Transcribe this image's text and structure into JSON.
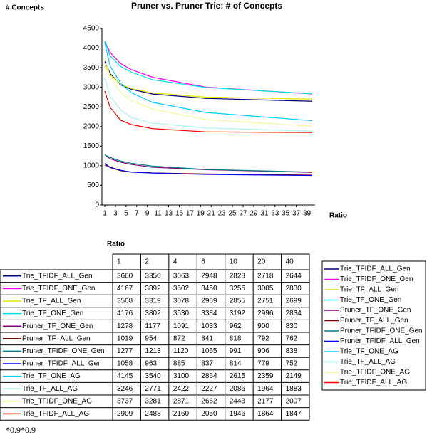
{
  "chart_data": {
    "type": "line",
    "title": "Pruner vs. Pruner Trie: # of Concepts",
    "y_label": "# Concepts",
    "x_label": "Ratio",
    "table_title": "Ratio",
    "x": [
      1,
      2,
      4,
      6,
      10,
      20,
      40
    ],
    "xlim": [
      1,
      40
    ],
    "xticks": [
      1,
      3,
      5,
      7,
      9,
      11,
      13,
      15,
      17,
      19,
      21,
      23,
      25,
      27,
      29,
      31,
      33,
      35,
      37,
      39
    ],
    "ylim": [
      0,
      4500
    ],
    "yticks": [
      0,
      500,
      1000,
      1500,
      2000,
      2500,
      3000,
      3500,
      4000,
      4500
    ],
    "series": [
      {
        "name": "Trie_TFIDF_ALL_Gen",
        "color": "#000080",
        "values": [
          3660,
          3350,
          3063,
          2948,
          2828,
          2718,
          2644
        ]
      },
      {
        "name": "Trie_TFIDF_ONE_Gen",
        "color": "#ff00ff",
        "values": [
          4167,
          3892,
          3602,
          3450,
          3255,
          3005,
          2830
        ]
      },
      {
        "name": "Trie_TF_ALL_Gen",
        "color": "#e6e600",
        "values": [
          3568,
          3319,
          3078,
          2969,
          2855,
          2751,
          2699
        ]
      },
      {
        "name": "Trie_TF_ONE_Gen",
        "color": "#00e0e0",
        "values": [
          4176,
          3802,
          3530,
          3384,
          3192,
          2996,
          2834
        ]
      },
      {
        "name": "Pruner_TF_ONE_Gen",
        "color": "#800080",
        "values": [
          1278,
          1177,
          1091,
          1033,
          962,
          900,
          830
        ]
      },
      {
        "name": "Pruner_TF_ALL_Gen",
        "color": "#800000",
        "values": [
          1019,
          954,
          872,
          841,
          818,
          792,
          762
        ]
      },
      {
        "name": "Pruner_TFIDF_ONE_Gen",
        "color": "#008080",
        "values": [
          1277,
          1213,
          1120,
          1065,
          991,
          906,
          838
        ]
      },
      {
        "name": "Pruner_TFIDF_ALL_Gen",
        "color": "#0000ff",
        "values": [
          1058,
          963,
          885,
          837,
          814,
          779,
          752
        ]
      },
      {
        "name": "Trie_TF_ONE_AG",
        "color": "#00ccff",
        "values": [
          4145,
          3540,
          3100,
          2864,
          2615,
          2359,
          2149
        ]
      },
      {
        "name": "Trie_TF_ALL_AG",
        "color": "#b0f0f0",
        "values": [
          3246,
          2771,
          2422,
          2227,
          2086,
          1964,
          1883
        ]
      },
      {
        "name": "Trie_TFIDF_ONE_AG",
        "color": "#f5f59a",
        "values": [
          3737,
          3281,
          2871,
          2662,
          2443,
          2177,
          2007
        ]
      },
      {
        "name": "Trie_TFIDF_ALL_AG",
        "color": "#ff0000",
        "values": [
          2909,
          2488,
          2160,
          2050,
          1946,
          1864,
          1847
        ]
      }
    ]
  },
  "footnote": "*0.9*0.9"
}
